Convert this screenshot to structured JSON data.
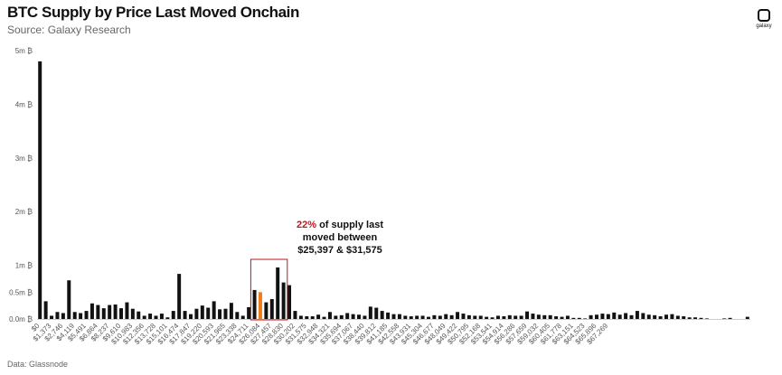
{
  "header": {
    "title": "BTC Supply by Price Last Moved Onchain",
    "subtitle": "Source: Galaxy Research"
  },
  "logo": {
    "text": "galaxy",
    "icon": "galaxy-logo-icon"
  },
  "footer": {
    "source": "Data: Glassnode"
  },
  "colors": {
    "bar": "#111111",
    "highlight": "#f07c1a",
    "annotation_box": "#c0161e",
    "annotation_pct": "#c0161e"
  },
  "annotation": {
    "pct": "22%",
    "line1_rest": " of supply last",
    "line2": "moved between",
    "line3": "$25,397 & $31,575",
    "range_start_index": 37,
    "range_end_index": 42
  },
  "chart_data": {
    "type": "bar",
    "title": "BTC Supply by Price Last Moved Onchain",
    "xlabel": "",
    "ylabel": "",
    "ylim": [
      0,
      5000000
    ],
    "yticks": [
      {
        "value": 0,
        "label": "0.0m ₿"
      },
      {
        "value": 500000,
        "label": "0.5m ₿"
      },
      {
        "value": 1000000,
        "label": "1m ₿"
      },
      {
        "value": 2000000,
        "label": "2m ₿"
      },
      {
        "value": 3000000,
        "label": "3m ₿"
      },
      {
        "value": 4000000,
        "label": "4m ₿"
      },
      {
        "value": 5000000,
        "label": "5m ₿"
      }
    ],
    "grid": false,
    "highlight_index": 38,
    "x_tick_labels": [
      "$0",
      "$1,373",
      "$2,746",
      "$4,119",
      "$5,491",
      "$6,864",
      "$8,237",
      "$9,610",
      "$10,983",
      "$12,356",
      "$13,728",
      "$15,101",
      "$16,474",
      "$17,847",
      "$19,220",
      "$20,593",
      "$21,965",
      "$23,338",
      "$24,711",
      "$26,084",
      "$27,457",
      "$28,830",
      "$30,202",
      "$31,575",
      "$32,948",
      "$34,321",
      "$35,694",
      "$37,067",
      "$38,440",
      "$39,812",
      "$41,185",
      "$42,558",
      "$43,931",
      "$45,304",
      "$46,677",
      "$48,049",
      "$49,422",
      "$50,795",
      "$52,168",
      "$53,541",
      "$54,914",
      "$56,286",
      "$57,659",
      "$59,032",
      "$60,405",
      "$61,778",
      "$63,151",
      "$64,523",
      "$65,896",
      "$67,269"
    ],
    "values": [
      4800000,
      330000,
      60000,
      130000,
      110000,
      720000,
      130000,
      110000,
      150000,
      290000,
      260000,
      200000,
      260000,
      270000,
      200000,
      310000,
      190000,
      140000,
      60000,
      100000,
      60000,
      100000,
      30000,
      150000,
      840000,
      150000,
      90000,
      190000,
      250000,
      210000,
      330000,
      180000,
      190000,
      300000,
      130000,
      60000,
      220000,
      540000,
      500000,
      310000,
      370000,
      960000,
      680000,
      630000,
      150000,
      60000,
      50000,
      50000,
      80000,
      40000,
      130000,
      60000,
      70000,
      110000,
      90000,
      80000,
      60000,
      230000,
      210000,
      150000,
      120000,
      90000,
      90000,
      60000,
      50000,
      60000,
      60000,
      40000,
      70000,
      60000,
      90000,
      70000,
      130000,
      100000,
      70000,
      60000,
      60000,
      40000,
      30000,
      60000,
      50000,
      70000,
      60000,
      60000,
      140000,
      100000,
      80000,
      70000,
      70000,
      50000,
      40000,
      60000,
      20000,
      20000,
      10000,
      70000,
      80000,
      100000,
      90000,
      120000,
      80000,
      110000,
      70000,
      150000,
      110000,
      80000,
      70000,
      50000,
      80000,
      90000,
      60000,
      50000,
      30000,
      30000,
      20000,
      10000,
      0,
      0,
      10000,
      20000,
      0,
      0,
      40000
    ]
  }
}
